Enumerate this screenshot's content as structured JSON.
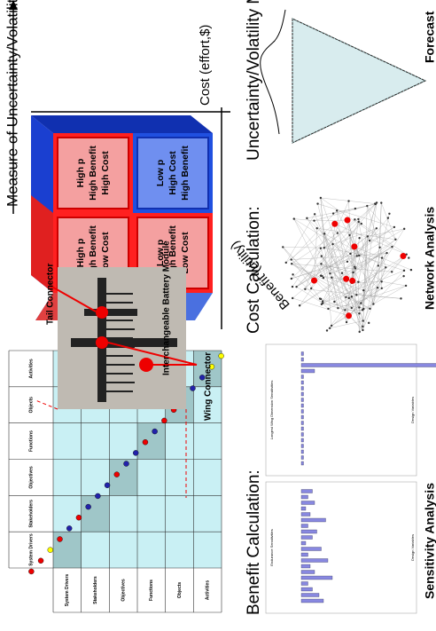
{
  "dsm": {
    "columns": [
      "System Drivers",
      "Stakeholders",
      "Objectives",
      "Functions",
      "Objects",
      "Activities"
    ],
    "rows": [
      "System Drivers",
      "Stakeholders",
      "Objectives",
      "Functions",
      "Objects",
      "Activities"
    ]
  },
  "callouts": [
    "Tail Connector",
    "Wing Connector",
    "Interchangeable Battery Module"
  ],
  "cube": {
    "vertical_axis": "Measure of Uncertainty/Volatility",
    "right_axis": "Cost (effort,$)",
    "depth_axis": "Benefit (utility)",
    "faces": [
      {
        "lines": [
          "High p",
          "High Benefit",
          "Low Cost"
        ]
      },
      {
        "lines": [
          "High p",
          "High Benefit",
          "High Cost"
        ]
      },
      {
        "lines": [
          "Low p",
          "High Benefit",
          "Low Cost"
        ]
      },
      {
        "lines": [
          "Low p",
          "High Cost",
          "High Benefit"
        ]
      }
    ]
  },
  "panels": [
    {
      "title": "Benefit Calculation:",
      "label": "Sensitivity Analysis",
      "charts": [
        "Endurance Sensitivities",
        "Longest Wing Dimension Sensitivities"
      ],
      "axis": "Design Variables"
    },
    {
      "title": "Cost Calculation:",
      "label": "Network Analysis"
    },
    {
      "title": "Uncertainty/Volatility Measure:",
      "label": "Forecast"
    }
  ]
}
